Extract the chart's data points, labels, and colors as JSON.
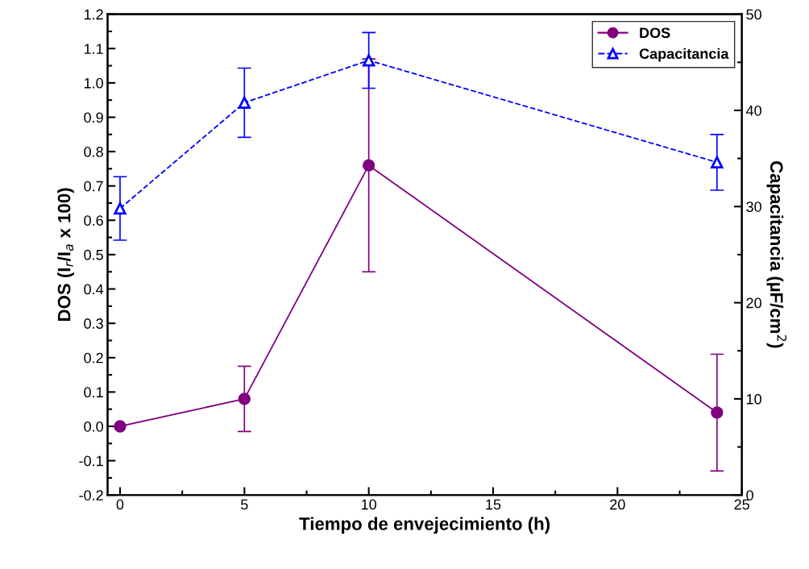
{
  "chart_data": {
    "type": "line",
    "xlabel": "Tiempo de envejecimiento (h)",
    "ylabel": "DOS (I$_{r}$/I$_{a}$ x 100)",
    "y2label": "Capacitancia (µF/cm$^{2}$)",
    "x": [
      0,
      5,
      10,
      24
    ],
    "series": [
      {
        "name": "DOS",
        "color": "#800080",
        "values": [
          0.0,
          0.08,
          0.76,
          0.04
        ],
        "errors": [
          null,
          0.095,
          0.31,
          0.17
        ],
        "marker": "circle",
        "line_style": "solid"
      },
      {
        "name": "Capacitancia",
        "color": "#0000ff",
        "axis": "y2",
        "values": [
          29.8,
          40.8,
          45.2,
          34.6
        ],
        "errors": [
          3.3,
          3.6,
          2.9,
          2.9
        ],
        "marker": "triangle",
        "line_style": "dashed"
      }
    ],
    "xlim": [
      -0.5,
      25
    ],
    "xticks": [
      0,
      5,
      10,
      15,
      20,
      25
    ],
    "ylim": [
      -0.2,
      1.2
    ],
    "yticks": [
      -0.2,
      -0.1,
      {
        "value": 0,
        "label": "0.0"
      },
      0.1,
      0.2,
      0.3,
      0.4,
      0.5,
      0.6,
      0.7,
      0.8,
      0.9,
      {
        "value": 1,
        "label": "1.0"
      },
      1.1,
      1.2
    ],
    "y2lim": [
      0,
      50
    ],
    "y2ticks": [
      0,
      10,
      20,
      30,
      40,
      50
    ],
    "legend": "top right",
    "grid": false
  }
}
